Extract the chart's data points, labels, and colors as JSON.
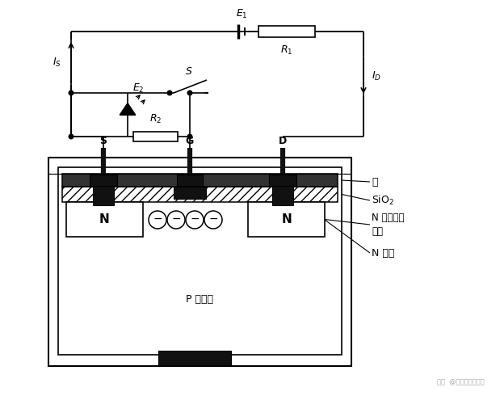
{
  "bg": "#ffffff",
  "lc": "#000000",
  "labels": {
    "S": "S",
    "G": "G",
    "D": "D",
    "N": "N",
    "P_sub": "P 型衬底",
    "al": "铝",
    "sio2": "SiO₂",
    "n_semi": "N 型半导体\n材料",
    "n_ch": "N 沟道",
    "E1": "E₁",
    "E2": "E₂",
    "R1": "R₁",
    "R2": "R₂",
    "IS": "I_S",
    "ID": "I_D",
    "Ssw": "S",
    "wm": "知乎  @张竞涵瞎尔精英"
  }
}
